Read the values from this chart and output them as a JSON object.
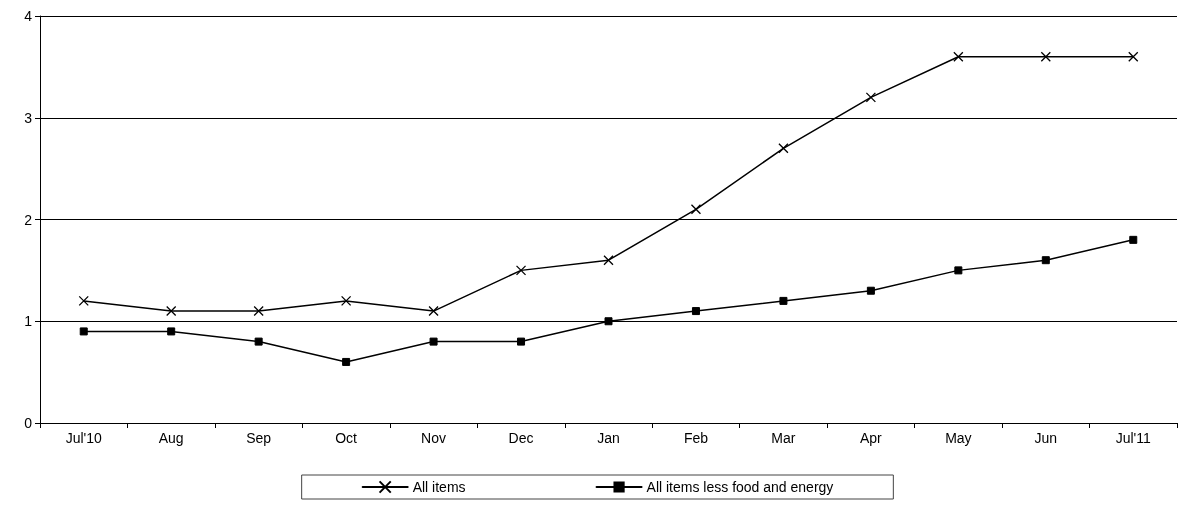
{
  "chart_data": {
    "type": "line",
    "categories": [
      "Jul'10",
      "Aug",
      "Sep",
      "Oct",
      "Nov",
      "Dec",
      "Jan",
      "Feb",
      "Mar",
      "Apr",
      "May",
      "Jun",
      "Jul'11"
    ],
    "series": [
      {
        "name": "All items",
        "color": "#000000",
        "marker": "cross",
        "values": [
          1.2,
          1.1,
          1.1,
          1.2,
          1.1,
          1.5,
          1.6,
          2.1,
          2.7,
          3.2,
          3.6,
          3.6,
          3.6
        ]
      },
      {
        "name": "All items less food and energy",
        "color": "#000000",
        "marker": "square",
        "values": [
          0.9,
          0.9,
          0.8,
          0.6,
          0.8,
          0.8,
          1.0,
          1.1,
          1.2,
          1.3,
          1.5,
          1.6,
          1.8
        ]
      }
    ],
    "ylim": [
      0,
      4
    ],
    "yticks": [
      0,
      1,
      2,
      3,
      4
    ],
    "grid": "y",
    "legend": "bottom",
    "line_style": "solid"
  }
}
